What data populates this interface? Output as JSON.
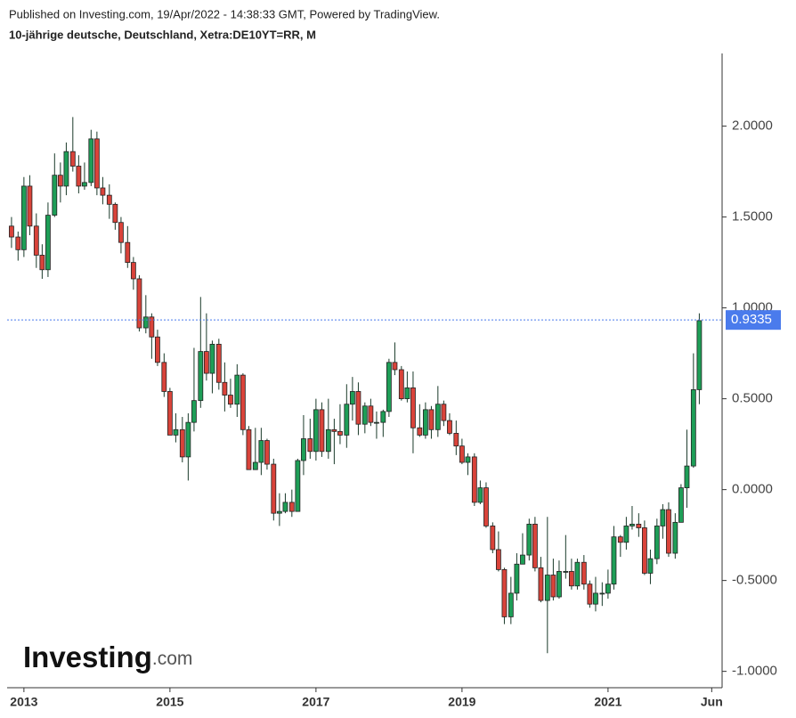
{
  "header": {
    "published": "Published on Investing.com, 19/Apr/2022 - 14:38:33 GMT, Powered by TradingView.",
    "instrument": "10-jährige deutsche, Deutschland, Xetra:DE10YT=RR, M"
  },
  "logo": {
    "name": "Investing",
    "suffix": ".com"
  },
  "chart_data": {
    "type": "candlestick",
    "x": [
      2012.83,
      2012.92,
      2013.0,
      2013.08,
      2013.17,
      2013.25,
      2013.33,
      2013.42,
      2013.5,
      2013.58,
      2013.67,
      2013.75,
      2013.83,
      2013.92,
      2014.0,
      2014.08,
      2014.17,
      2014.25,
      2014.33,
      2014.42,
      2014.5,
      2014.58,
      2014.67,
      2014.75,
      2014.83,
      2014.92,
      2015.0,
      2015.08,
      2015.17,
      2015.25,
      2015.33,
      2015.42,
      2015.5,
      2015.58,
      2015.67,
      2015.75,
      2015.83,
      2015.92,
      2016.0,
      2016.08,
      2016.17,
      2016.25,
      2016.33,
      2016.42,
      2016.5,
      2016.58,
      2016.67,
      2016.75,
      2016.83,
      2016.92,
      2017.0,
      2017.08,
      2017.17,
      2017.25,
      2017.33,
      2017.42,
      2017.5,
      2017.58,
      2017.67,
      2017.75,
      2017.83,
      2017.92,
      2018.0,
      2018.08,
      2018.17,
      2018.25,
      2018.33,
      2018.42,
      2018.5,
      2018.58,
      2018.67,
      2018.75,
      2018.83,
      2018.92,
      2019.0,
      2019.08,
      2019.17,
      2019.25,
      2019.33,
      2019.42,
      2019.5,
      2019.58,
      2019.67,
      2019.75,
      2019.83,
      2019.92,
      2020.0,
      2020.08,
      2020.17,
      2020.25,
      2020.33,
      2020.42,
      2020.5,
      2020.58,
      2020.67,
      2020.75,
      2020.83,
      2020.92,
      2021.0,
      2021.08,
      2021.17,
      2021.25,
      2021.33,
      2021.42,
      2021.5,
      2021.58,
      2021.67,
      2021.75,
      2021.83,
      2021.92,
      2022.0,
      2022.08,
      2022.17,
      2022.25
    ],
    "open": [
      1.45,
      1.39,
      1.32,
      1.67,
      1.45,
      1.29,
      1.21,
      1.51,
      1.73,
      1.67,
      1.86,
      1.78,
      1.67,
      1.69,
      1.93,
      1.66,
      1.62,
      1.57,
      1.47,
      1.36,
      1.25,
      1.16,
      0.89,
      0.95,
      0.84,
      0.7,
      0.54,
      0.3,
      0.33,
      0.18,
      0.37,
      0.49,
      0.76,
      0.64,
      0.8,
      0.59,
      0.52,
      0.47,
      0.63,
      0.33,
      0.11,
      0.15,
      0.27,
      0.14,
      -0.13,
      -0.12,
      -0.07,
      -0.12,
      0.16,
      0.28,
      0.21,
      0.44,
      0.21,
      0.33,
      0.32,
      0.3,
      0.47,
      0.54,
      0.36,
      0.46,
      0.37,
      0.37,
      0.43,
      0.7,
      0.66,
      0.5,
      0.56,
      0.34,
      0.3,
      0.44,
      0.33,
      0.47,
      0.38,
      0.31,
      0.24,
      0.15,
      0.18,
      -0.07,
      0.01,
      -0.2,
      -0.33,
      -0.44,
      -0.7,
      -0.57,
      -0.41,
      -0.36,
      -0.19,
      -0.43,
      -0.61,
      -0.47,
      -0.59,
      -0.45,
      -0.45,
      -0.53,
      -0.4,
      -0.52,
      -0.63,
      -0.57,
      -0.57,
      -0.52,
      -0.26,
      -0.29,
      -0.2,
      -0.19,
      -0.21,
      -0.46,
      -0.38,
      -0.2,
      -0.11,
      -0.35,
      -0.18,
      0.01,
      0.13,
      0.55
    ],
    "high": [
      1.5,
      1.42,
      1.72,
      1.73,
      1.52,
      1.35,
      1.58,
      1.85,
      1.8,
      1.91,
      2.05,
      1.84,
      1.8,
      1.98,
      1.97,
      1.72,
      1.68,
      1.58,
      1.5,
      1.45,
      1.28,
      1.18,
      1.07,
      0.97,
      0.88,
      0.75,
      0.56,
      0.42,
      0.4,
      0.42,
      0.78,
      1.06,
      0.97,
      0.82,
      0.83,
      0.7,
      0.61,
      0.69,
      0.64,
      0.35,
      0.34,
      0.34,
      0.28,
      0.17,
      -0.02,
      -0.02,
      0.0,
      0.17,
      0.41,
      0.39,
      0.5,
      0.48,
      0.5,
      0.39,
      0.47,
      0.58,
      0.62,
      0.59,
      0.48,
      0.5,
      0.43,
      0.44,
      0.72,
      0.81,
      0.68,
      0.65,
      0.65,
      0.47,
      0.48,
      0.46,
      0.57,
      0.49,
      0.42,
      0.38,
      0.28,
      0.2,
      0.2,
      0.05,
      0.04,
      -0.18,
      -0.23,
      -0.43,
      -0.48,
      -0.35,
      -0.24,
      -0.16,
      -0.15,
      -0.37,
      -0.15,
      -0.38,
      -0.39,
      -0.25,
      -0.38,
      -0.38,
      -0.36,
      -0.5,
      -0.48,
      -0.51,
      -0.44,
      -0.2,
      -0.25,
      -0.15,
      -0.09,
      -0.13,
      -0.17,
      -0.33,
      -0.16,
      -0.08,
      -0.07,
      -0.13,
      0.03,
      0.33,
      0.75,
      0.97
    ],
    "low": [
      1.33,
      1.26,
      1.28,
      1.4,
      1.22,
      1.16,
      1.17,
      1.5,
      1.58,
      1.62,
      1.75,
      1.63,
      1.65,
      1.67,
      1.62,
      1.57,
      1.49,
      1.43,
      1.3,
      1.22,
      1.1,
      0.87,
      0.86,
      0.72,
      0.68,
      0.51,
      0.3,
      0.26,
      0.15,
      0.05,
      0.32,
      0.45,
      0.6,
      0.53,
      0.55,
      0.43,
      0.45,
      0.4,
      0.3,
      0.11,
      0.11,
      0.08,
      0.11,
      -0.17,
      -0.2,
      -0.13,
      -0.15,
      -0.12,
      0.08,
      0.17,
      0.16,
      0.18,
      0.17,
      0.14,
      0.25,
      0.23,
      0.38,
      0.3,
      0.31,
      0.35,
      0.28,
      0.29,
      0.4,
      0.63,
      0.49,
      0.48,
      0.2,
      0.29,
      0.28,
      0.28,
      0.29,
      0.35,
      0.3,
      0.19,
      0.14,
      0.08,
      -0.09,
      -0.08,
      -0.21,
      -0.35,
      -0.45,
      -0.74,
      -0.74,
      -0.61,
      -0.41,
      -0.39,
      -0.45,
      -0.62,
      -0.9,
      -0.61,
      -0.6,
      -0.49,
      -0.55,
      -0.55,
      -0.55,
      -0.65,
      -0.67,
      -0.64,
      -0.6,
      -0.55,
      -0.37,
      -0.33,
      -0.22,
      -0.26,
      -0.47,
      -0.52,
      -0.41,
      -0.27,
      -0.37,
      -0.38,
      -0.18,
      -0.1,
      0.12,
      0.47
    ],
    "close": [
      1.39,
      1.32,
      1.67,
      1.45,
      1.29,
      1.21,
      1.51,
      1.73,
      1.67,
      1.86,
      1.78,
      1.67,
      1.69,
      1.93,
      1.66,
      1.62,
      1.57,
      1.47,
      1.36,
      1.25,
      1.16,
      0.89,
      0.95,
      0.84,
      0.7,
      0.54,
      0.3,
      0.33,
      0.18,
      0.37,
      0.49,
      0.76,
      0.64,
      0.8,
      0.59,
      0.52,
      0.47,
      0.63,
      0.33,
      0.11,
      0.15,
      0.27,
      0.14,
      -0.13,
      -0.12,
      -0.07,
      -0.12,
      0.16,
      0.28,
      0.21,
      0.44,
      0.21,
      0.33,
      0.32,
      0.3,
      0.47,
      0.54,
      0.36,
      0.46,
      0.37,
      0.37,
      0.43,
      0.7,
      0.66,
      0.5,
      0.56,
      0.34,
      0.3,
      0.44,
      0.33,
      0.47,
      0.38,
      0.31,
      0.24,
      0.15,
      0.18,
      -0.07,
      0.01,
      -0.2,
      -0.33,
      -0.44,
      -0.7,
      -0.57,
      -0.41,
      -0.36,
      -0.19,
      -0.43,
      -0.61,
      -0.47,
      -0.59,
      -0.45,
      -0.45,
      -0.53,
      -0.4,
      -0.52,
      -0.63,
      -0.57,
      -0.57,
      -0.52,
      -0.26,
      -0.29,
      -0.2,
      -0.19,
      -0.21,
      -0.46,
      -0.38,
      -0.2,
      -0.11,
      -0.35,
      -0.18,
      0.01,
      0.13,
      0.55,
      0.93
    ],
    "up_color": "#1e9e57",
    "down_color": "#d9433a",
    "last_value": 0.9335,
    "last_color": "#4a7bec",
    "xlim": [
      2012.77,
      2022.55
    ],
    "xticks": [
      2013,
      2015,
      2017,
      2019,
      2021,
      {
        "value": 2022.42,
        "label": "Jun"
      }
    ],
    "ylim": [
      -1.09,
      2.4
    ],
    "yticks": [
      {
        "value": -1,
        "label": "-1.0000"
      },
      {
        "value": -0.5,
        "label": "-0.5000"
      },
      {
        "value": 0,
        "label": "0.0000"
      },
      {
        "value": 0.5,
        "label": "0.5000"
      },
      {
        "value": 1,
        "label": "1.0000"
      },
      {
        "value": 1.5,
        "label": "1.5000"
      },
      {
        "value": 2,
        "label": "2.0000"
      }
    ]
  }
}
